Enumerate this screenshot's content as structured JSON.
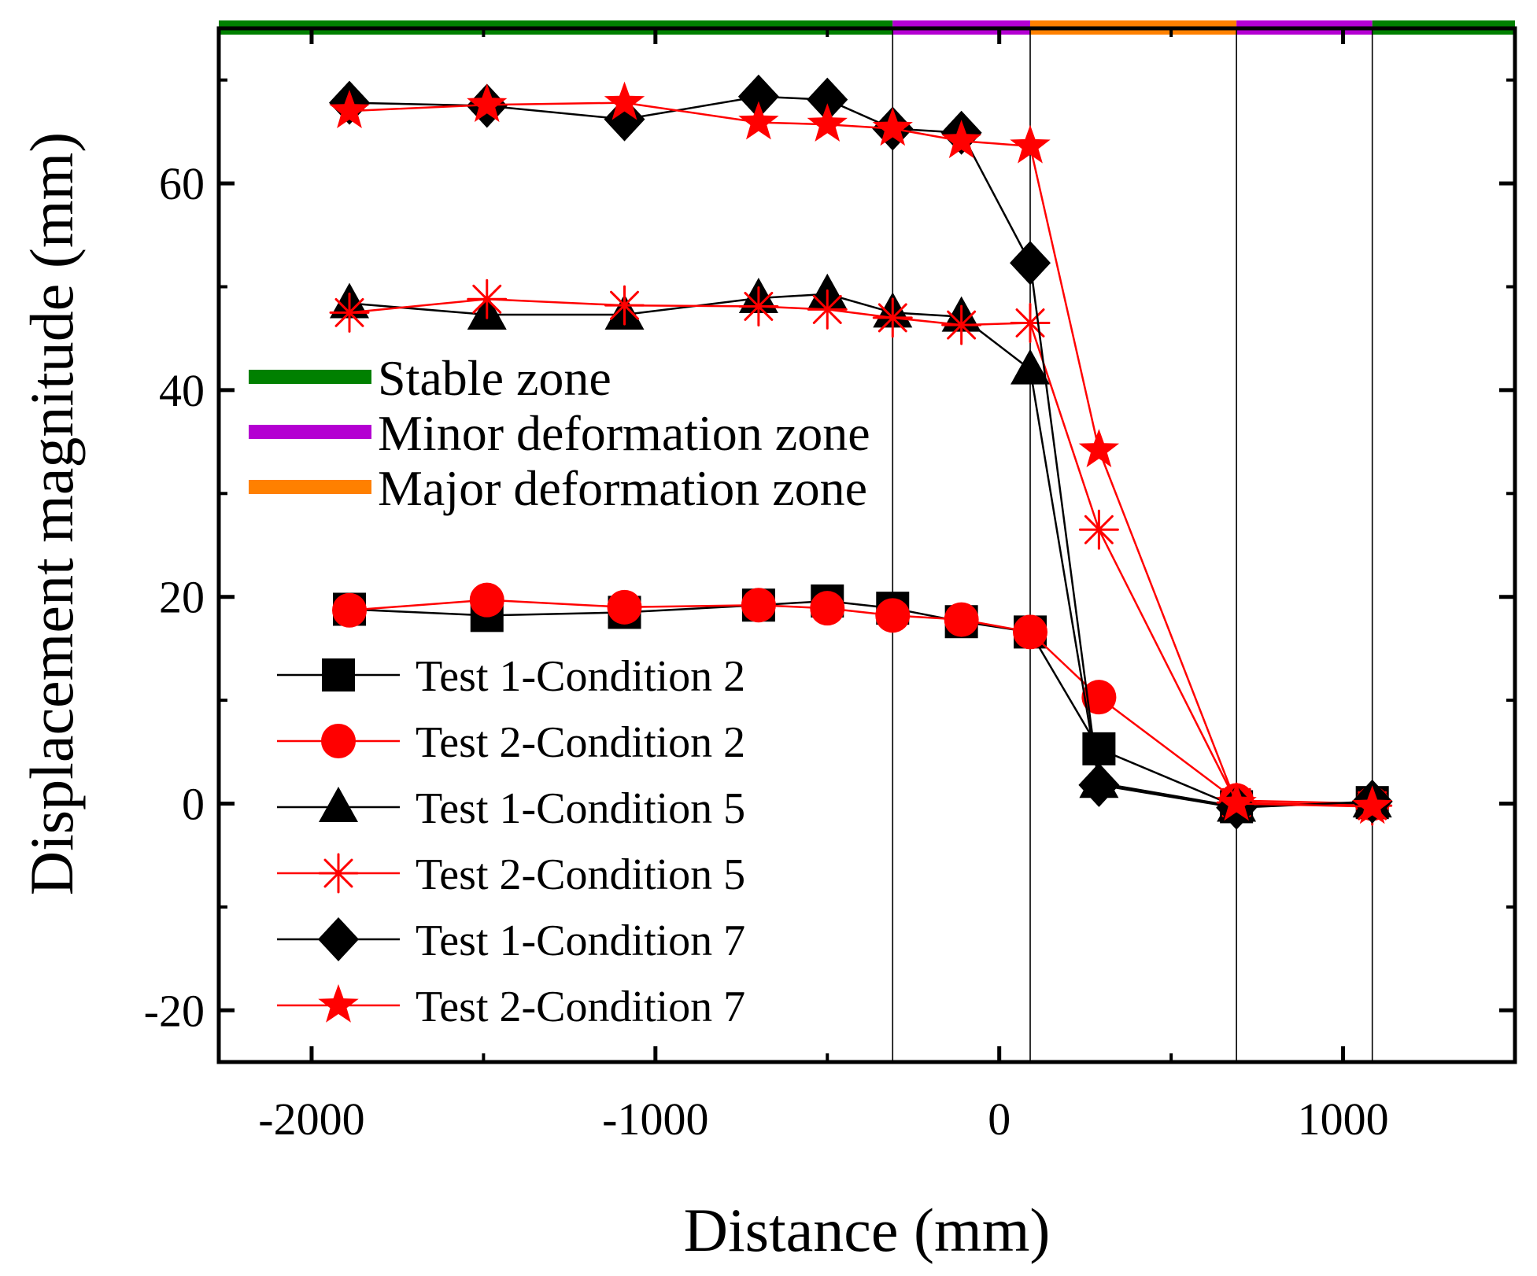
{
  "chart_data": {
    "type": "line",
    "title": "",
    "xlabel": "Distance (mm)",
    "ylabel": "Displacement magnitude (mm)",
    "xlim": [
      -2270,
      1500
    ],
    "ylim": [
      -25,
      75
    ],
    "xticks": [
      -2000,
      -1000,
      0,
      1000
    ],
    "xtick_labels": [
      "-2000",
      "-1000",
      "0",
      "1000"
    ],
    "yticks": [
      -20,
      0,
      20,
      40,
      60
    ],
    "ytick_labels": [
      "-20",
      "0",
      "20",
      "40",
      "60"
    ],
    "x_minor_ticks": [
      -1500,
      -500,
      500
    ],
    "y_minor_ticks": [
      -10,
      10,
      30,
      50,
      70
    ],
    "zone_boundaries": [
      -310,
      90,
      690,
      1085
    ],
    "zones": [
      {
        "name": "Stable zone",
        "color": "#008000",
        "from": -2270,
        "to": -310
      },
      {
        "name": "Minor deformation zone",
        "color": "#b400d2",
        "from": -310,
        "to": 90
      },
      {
        "name": "Major deformation zone",
        "color": "#ff8000",
        "from": 90,
        "to": 690
      },
      {
        "name": "Minor deformation zone",
        "color": "#b400d2",
        "from": 690,
        "to": 1085
      },
      {
        "name": "Stable zone",
        "color": "#008000",
        "from": 1085,
        "to": 1500
      }
    ],
    "zone_legend": [
      {
        "label": "Stable zone",
        "color": "#008000"
      },
      {
        "label": "Minor deformation zone",
        "color": "#b400d2"
      },
      {
        "label": "Major deformation zone",
        "color": "#ff8000"
      }
    ],
    "series": [
      {
        "name": "Test 1-Condition 2",
        "color": "#000000",
        "marker": "square",
        "x": [
          -1890,
          -1490,
          -1090,
          -700,
          -500,
          -310,
          -110,
          90,
          290,
          690,
          1085
        ],
        "y": [
          18.8,
          18.2,
          18.5,
          19.2,
          19.6,
          18.9,
          17.6,
          16.6,
          5.3,
          -0.3,
          0.1
        ]
      },
      {
        "name": "Test 2-Condition 2",
        "color": "#ff0000",
        "marker": "circle",
        "x": [
          -1890,
          -1490,
          -1090,
          -700,
          -500,
          -310,
          -110,
          90,
          290,
          690,
          1085
        ],
        "y": [
          18.7,
          19.7,
          19.0,
          19.2,
          18.9,
          18.2,
          17.8,
          16.6,
          10.3,
          0.3,
          0.0
        ]
      },
      {
        "name": "Test 1-Condition 5",
        "color": "#000000",
        "marker": "triangle",
        "x": [
          -1890,
          -1490,
          -1090,
          -700,
          -500,
          -310,
          -110,
          90,
          290,
          690,
          1085
        ],
        "y": [
          48.4,
          47.3,
          47.3,
          48.9,
          49.3,
          47.5,
          47.1,
          42.0,
          2.0,
          -0.3,
          0.1
        ]
      },
      {
        "name": "Test 2-Condition 5",
        "color": "#ff0000",
        "marker": "asterisk",
        "x": [
          -1890,
          -1490,
          -1090,
          -700,
          -500,
          -310,
          -110,
          90,
          290,
          690,
          1085
        ],
        "y": [
          47.5,
          48.8,
          48.2,
          48.1,
          47.8,
          47.0,
          46.3,
          46.5,
          26.5,
          0.1,
          -0.2
        ]
      },
      {
        "name": "Test 1-Condition 7",
        "color": "#000000",
        "marker": "diamond",
        "x": [
          -1890,
          -1490,
          -1090,
          -700,
          -500,
          -310,
          -110,
          90,
          290,
          690,
          1085
        ],
        "y": [
          67.8,
          67.5,
          66.2,
          68.4,
          68.1,
          65.3,
          64.9,
          52.3,
          1.8,
          -0.4,
          0.2
        ]
      },
      {
        "name": "Test 2-Condition 7",
        "color": "#ff0000",
        "marker": "star",
        "x": [
          -1890,
          -1490,
          -1090,
          -700,
          -500,
          -310,
          -110,
          90,
          290,
          690,
          1085
        ],
        "y": [
          67.0,
          67.6,
          67.8,
          65.9,
          65.7,
          65.3,
          64.1,
          63.6,
          34.2,
          0.0,
          -0.3
        ]
      }
    ]
  }
}
